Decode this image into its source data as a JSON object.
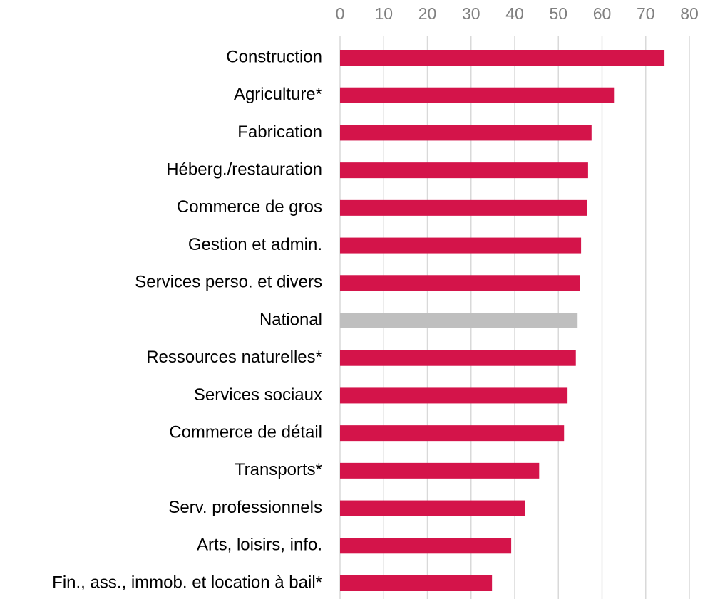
{
  "chart_data": {
    "type": "bar",
    "orientation": "horizontal",
    "categories": [
      "Construction",
      "Agriculture*",
      "Fabrication",
      "Héberg./restauration",
      "Commerce de gros",
      "Gestion et admin.",
      "Services perso. et divers",
      "National",
      "Ressources naturelles*",
      "Services sociaux",
      "Commerce de détail",
      "Transports*",
      "Serv. professionnels",
      "Arts, loisirs, info.",
      "Fin., ass., immob. et location à bail*"
    ],
    "values": [
      74.3,
      62.9,
      57.6,
      56.8,
      56.5,
      55.2,
      55.0,
      54.4,
      54.0,
      52.1,
      51.3,
      45.6,
      42.4,
      39.2,
      34.8
    ],
    "colors": [
      "#d4144a",
      "#d4144a",
      "#d4144a",
      "#d4144a",
      "#d4144a",
      "#d4144a",
      "#d4144a",
      "#bfbfbf",
      "#d4144a",
      "#d4144a",
      "#d4144a",
      "#d4144a",
      "#d4144a",
      "#d4144a",
      "#d4144a"
    ],
    "xlim": [
      0,
      80
    ],
    "xticks": [
      0,
      10,
      20,
      30,
      40,
      50,
      60,
      70,
      80
    ],
    "grid": true
  }
}
